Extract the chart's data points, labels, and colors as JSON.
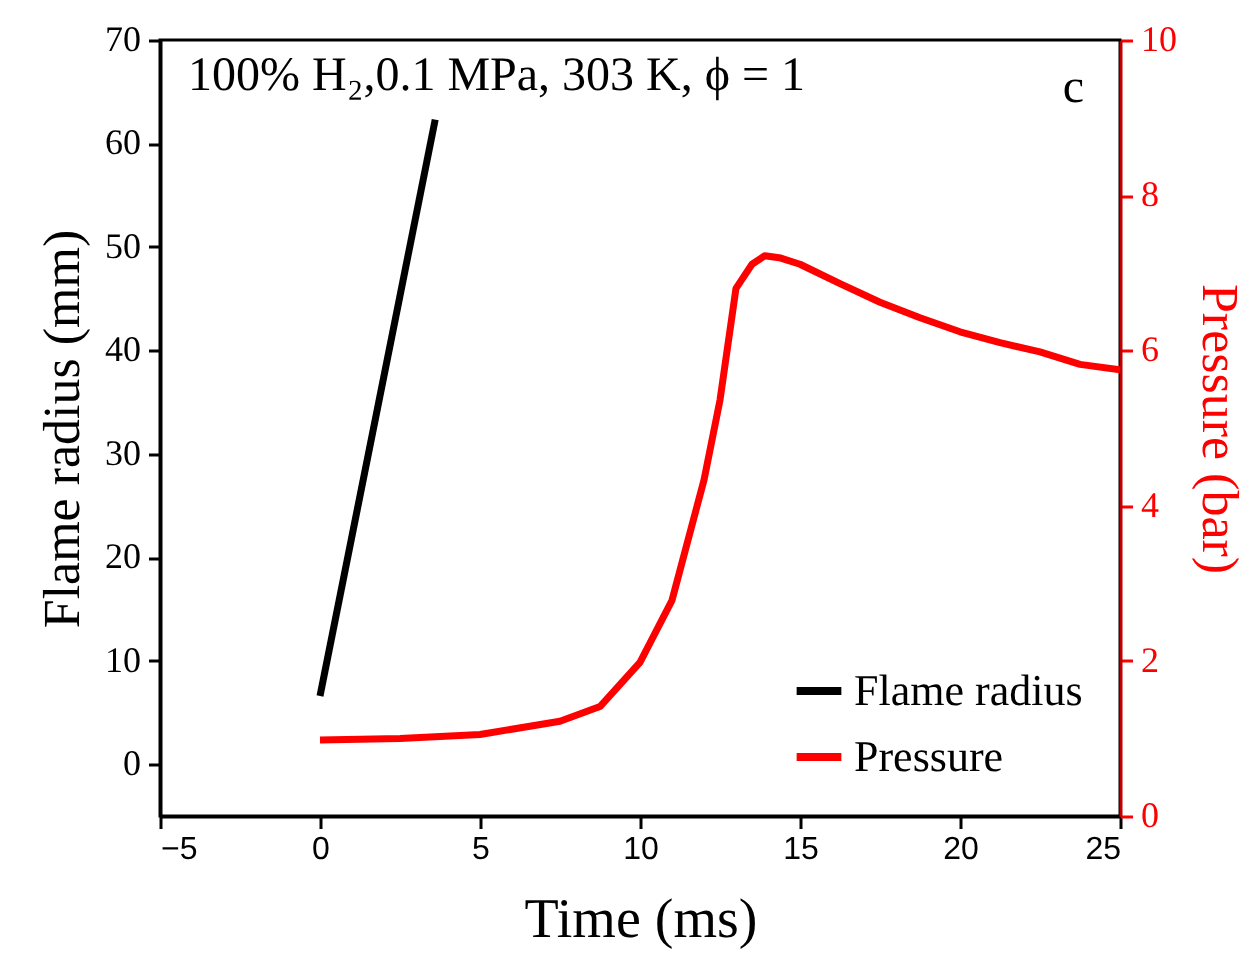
{
  "chart_data": {
    "type": "line",
    "xlabel": "Time (ms)",
    "ylabel": "Flame radius (mm)",
    "y2label": "Pressure (bar)",
    "annotations": [
      "100% H₂,0.1 MPa, 303 K, ϕ = 1",
      "c"
    ],
    "xlim": [
      -5,
      25
    ],
    "xticks": [
      -5,
      0,
      5,
      10,
      15,
      20,
      25
    ],
    "ylim": [
      -5,
      70
    ],
    "yticks": [
      0,
      10,
      20,
      30,
      40,
      50,
      60,
      70
    ],
    "y2lim": [
      0,
      10
    ],
    "y2ticks": [
      0,
      2,
      4,
      6,
      8,
      10
    ],
    "grid": false,
    "legend": "bottom right",
    "line_style": "solid",
    "marker": "none",
    "series": [
      {
        "name": "Flame radius",
        "color": "#000000",
        "x": [
          0,
          3.6
        ],
        "values": [
          6.6,
          62.3
        ]
      },
      {
        "name": "Pressure",
        "color": "#ff0000",
        "axis": "y2",
        "x": [
          0,
          2.5,
          5,
          7.5,
          8.75,
          10,
          11,
          12,
          12.5,
          13,
          13.5,
          13.9,
          14.4,
          15,
          16.25,
          17.5,
          18.75,
          20,
          21.25,
          22.5,
          23.75,
          25
        ],
        "values": [
          0.98,
          1.0,
          1.05,
          1.22,
          1.41,
          1.98,
          2.78,
          4.33,
          5.36,
          6.8,
          7.11,
          7.22,
          7.19,
          7.11,
          6.86,
          6.62,
          6.42,
          6.24,
          6.1,
          5.98,
          5.82,
          5.75
        ]
      }
    ]
  }
}
